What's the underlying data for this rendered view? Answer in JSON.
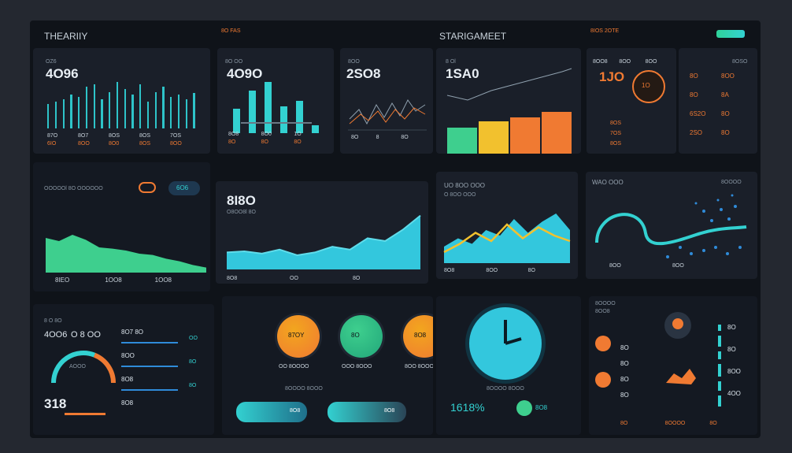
{
  "header": {
    "left_title": "THEARIIY",
    "mid_tag": "8O FAS",
    "center_title": "STARIGAMEET",
    "right_tag": "8IOS 2OTE"
  },
  "colors": {
    "background": "#242830",
    "screen": "#0f1319",
    "panel": "#1a1f29",
    "teal": "#33d1d1",
    "orange": "#f07a32",
    "green": "#3ecf8e",
    "yellow": "#f2c12e"
  },
  "panel1": {
    "label": "OZ6",
    "value": "4O96",
    "foot": [
      "87O",
      "8O7",
      "8OS",
      "8OS",
      "7OS"
    ],
    "foot2": [
      "6IO",
      "8OO",
      "8O0",
      "8OS",
      "8OO"
    ],
    "bars": [
      0.5,
      0.55,
      0.6,
      0.7,
      0.65,
      0.85,
      0.9,
      0.6,
      0.75,
      0.95,
      0.8,
      0.7,
      0.9,
      0.55,
      0.75,
      0.85,
      0.65,
      0.7,
      0.6,
      0.72
    ]
  },
  "panel2": {
    "label": "8O OO",
    "value": "4O9O",
    "sub": "O2.",
    "bars": [
      0.45,
      0.8,
      0.95,
      0.5,
      0.6,
      0.15
    ],
    "foot": [
      "8O8",
      "8O0",
      "1O"
    ],
    "foot2": [
      "8O",
      "8O",
      "8O"
    ]
  },
  "panel3": {
    "label": "8OO",
    "value": "2SO8",
    "foot": [
      "8O",
      "8",
      "8O"
    ]
  },
  "panel4": {
    "label": "8 Ol",
    "value": "1SA0",
    "bars": [
      0.45,
      0.55,
      0.62,
      0.72
    ]
  },
  "panel5": {
    "labels": [
      "8OO8",
      "8OO",
      "8OO"
    ],
    "value1": "1JO",
    "value2": "1O",
    "rows": [
      "8OS",
      "7OS",
      "8OS"
    ]
  },
  "panel6": {
    "label": "8OSO",
    "rows": [
      "8O",
      "8O",
      "6S2O",
      "2SO"
    ],
    "values": [
      "8OO",
      "8A",
      "8O",
      "8O"
    ]
  },
  "area1": {
    "title": "OOOOOl 8O OOOOOO",
    "tag": "6O6",
    "values": [
      0.55,
      0.5,
      0.6,
      0.52,
      0.4,
      0.38,
      0.35,
      0.3,
      0.28,
      0.22,
      0.18,
      0.12,
      0.08
    ],
    "foot": [
      "8IEO",
      "1OO8",
      "1OO8"
    ]
  },
  "area2": {
    "value": "8I8O",
    "sub": "O8OO8l 8O",
    "values": [
      0.3,
      0.32,
      0.28,
      0.35,
      0.25,
      0.3,
      0.4,
      0.35,
      0.55,
      0.5,
      0.7,
      0.95
    ],
    "foot": [
      "8O8",
      "OO",
      "8O"
    ]
  },
  "area3": {
    "title": "UO 8OO OOO",
    "sub": "O 8OO OOO",
    "series1": [
      0.3,
      0.45,
      0.35,
      0.6,
      0.5,
      0.8,
      0.55,
      0.75,
      0.9,
      0.6
    ],
    "series2": [
      0.2,
      0.35,
      0.55,
      0.4,
      0.7,
      0.45,
      0.65,
      0.5,
      0.4
    ],
    "foot": [
      "8O8",
      "8OO",
      "8O"
    ]
  },
  "area4": {
    "title": "WAO OOO",
    "tag": "8OOOO",
    "foot": [
      "8OO",
      "8OO"
    ]
  },
  "bottom1": {
    "title": "8 O 8O",
    "value": "4OO6",
    "sub": "O 8 OO",
    "gauge_label": "AOOO",
    "gauge_level": 0.62,
    "value2": "318",
    "items": [
      "OO",
      "8O",
      "8O"
    ],
    "rows": [
      "8O7 8O",
      "8OO",
      "8O8",
      "8O8"
    ]
  },
  "bottom2": {
    "circles": [
      "87OY",
      "8O",
      "8O8"
    ],
    "labels": [
      "OO 8OOOO",
      "OOO 8OOO",
      "8OO 8OOO"
    ],
    "caption": "8OOOO 8OOO",
    "btn1": "8O8",
    "btn2": "8O8"
  },
  "bottom3": {
    "caption": "8OOOO 8OOO",
    "value": "1618%",
    "value2": "8O8"
  },
  "bottom4": {
    "title": "8OOOO",
    "sub": "8OO8",
    "values": [
      "8O",
      "8O",
      "8O",
      "8O"
    ],
    "right": [
      "8O",
      "8O",
      "8OO",
      "4OO"
    ],
    "foot": [
      "8O",
      "8OOOO",
      "8O"
    ]
  }
}
